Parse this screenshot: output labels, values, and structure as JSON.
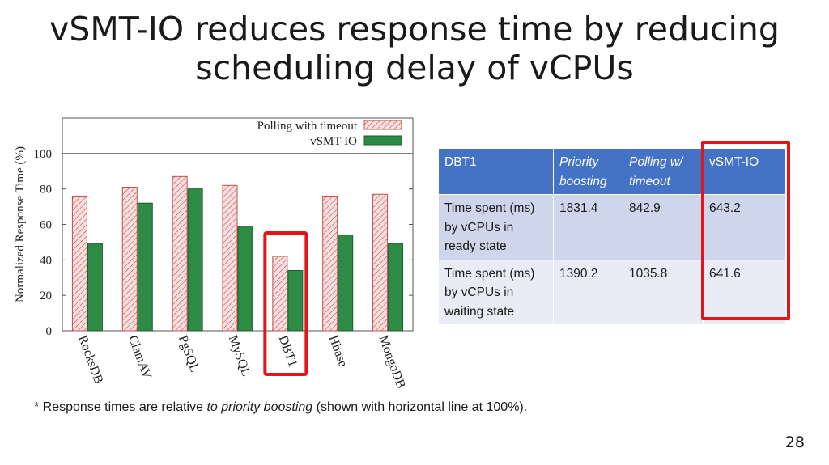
{
  "slide": {
    "title_line1": "vSMT-IO reduces response time by reducing",
    "title_line2": "scheduling delay of vCPUs",
    "footnote_prefix": "* Response times are relative ",
    "footnote_italic": "to priority boosting",
    "footnote_suffix": " (shown with horizontal line at 100%).",
    "page_number": "28"
  },
  "colors": {
    "polling_fill": "#f4c6c6",
    "polling_stroke": "#c0504d",
    "vsmt_fill": "#2e8b45",
    "highlight": "#e3141a",
    "table_header": "#4472c4"
  },
  "chart_data": {
    "type": "bar",
    "ylabel": "Normalized Response Time (%)",
    "xlabel": "",
    "ylim": [
      0,
      120
    ],
    "yticks": [
      0,
      20,
      40,
      60,
      80,
      100
    ],
    "reference_line": 100,
    "legend_position": "top-right",
    "categories": [
      "RocksDB",
      "ClamAV",
      "PgSQL",
      "MySQL",
      "DBT1",
      "Hbase",
      "MongoDB"
    ],
    "series": [
      {
        "name": "Polling with timeout",
        "values": [
          76,
          81,
          87,
          82,
          42,
          76,
          77
        ]
      },
      {
        "name": "vSMT-IO",
        "values": [
          49,
          72,
          80,
          59,
          34,
          54,
          49
        ]
      }
    ],
    "highlighted_category": "DBT1"
  },
  "table": {
    "headers": [
      "DBT1",
      "Priority boosting",
      "Polling w/ timeout",
      "vSMT-IO"
    ],
    "rows": [
      [
        "Time spent (ms) by vCPUs in ready state",
        "1831.4",
        "842.9",
        "643.2"
      ],
      [
        "Time spent (ms) by vCPUs in waiting state",
        "1390.2",
        "1035.8",
        "641.6"
      ]
    ]
  }
}
